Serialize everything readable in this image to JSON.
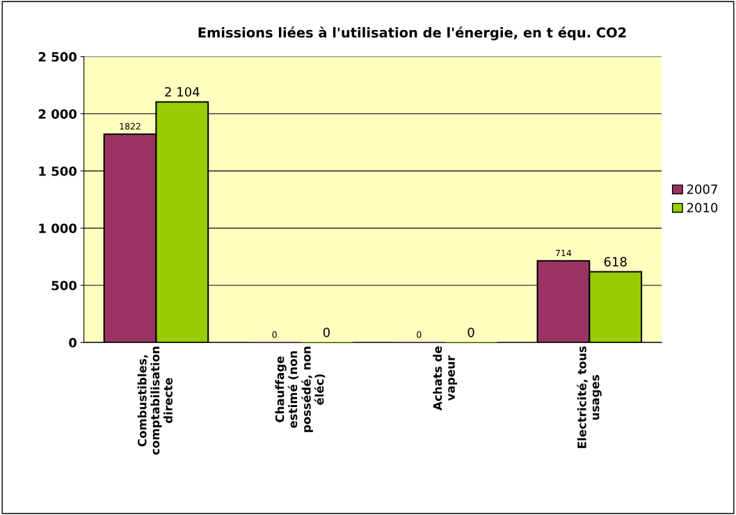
{
  "chart_data": {
    "type": "bar",
    "title": "Emissions liées à l'utilisation de l'énergie, en t équ. CO2",
    "categories": [
      "Combustibles,\ncomptabilisation\ndirecte",
      "Chauffage\nestimé (non\npossédé, non\néléc)",
      "Achats de\nvapeur",
      "Electricité, tous\nusages"
    ],
    "series": [
      {
        "name": "2007",
        "color": "#993366",
        "values": [
          1822,
          0,
          0,
          714
        ],
        "value_labels": [
          "1822",
          "0",
          "0",
          "714"
        ]
      },
      {
        "name": "2010",
        "color": "#99cc00",
        "values": [
          2104,
          0,
          0,
          618
        ],
        "value_labels": [
          "2 104",
          "0",
          "0",
          "618"
        ]
      }
    ],
    "ylim": [
      0,
      2500
    ],
    "yticks": [
      {
        "value": 0,
        "label": "0"
      },
      {
        "value": 500,
        "label": "500"
      },
      {
        "value": 1000,
        "label": "1 000"
      },
      {
        "value": 1500,
        "label": "1 500"
      },
      {
        "value": 2000,
        "label": "2 000"
      },
      {
        "value": 2500,
        "label": "2 500"
      }
    ],
    "grid": "y",
    "legend": "right"
  }
}
